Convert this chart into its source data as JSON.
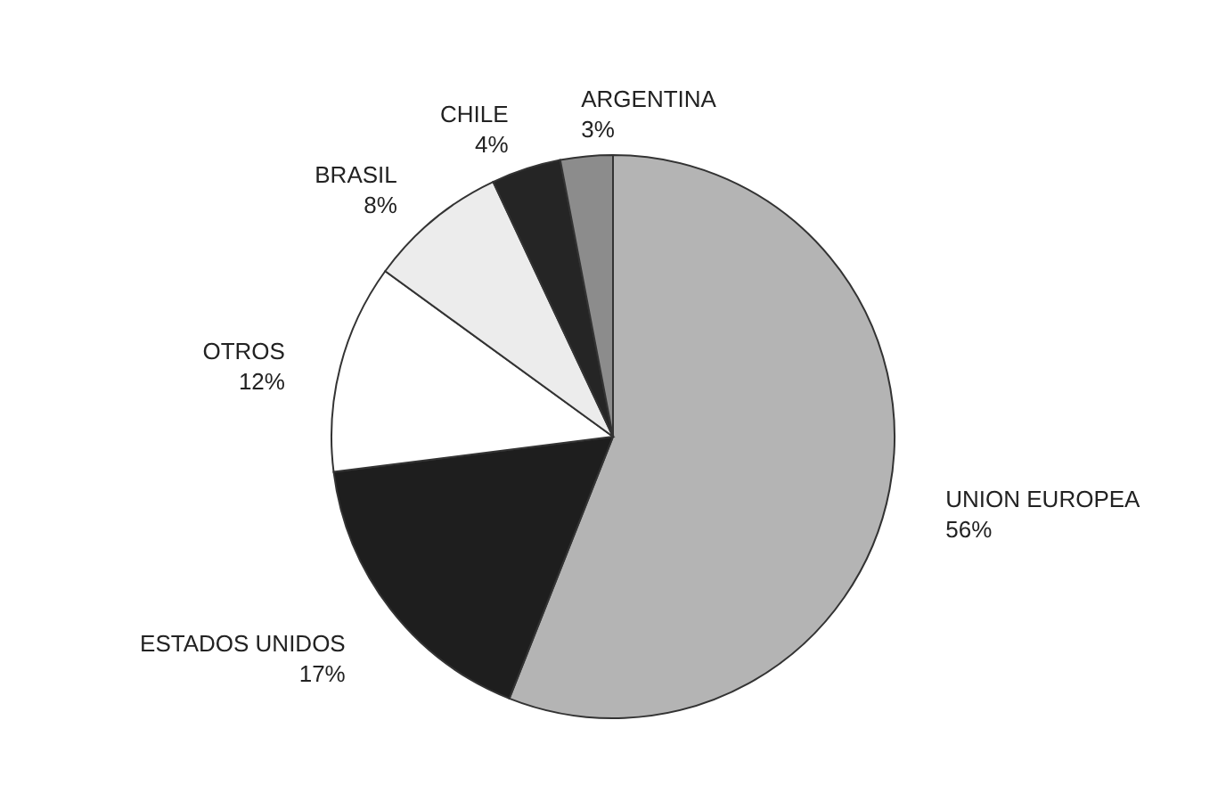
{
  "chart_data": {
    "type": "pie",
    "categories": [
      "UNION EUROPEA",
      "ESTADOS UNIDOS",
      "OTROS",
      "BRASIL",
      "CHILE",
      "ARGENTINA"
    ],
    "values": [
      56,
      17,
      12,
      8,
      4,
      3
    ],
    "value_labels": [
      "56%",
      "17%",
      "12%",
      "8%",
      "4%",
      "3%"
    ],
    "colors": [
      "#b4b4b4",
      "#1e1e1e",
      "#ffffff",
      "#ececec",
      "#252525",
      "#8c8c8c"
    ]
  }
}
